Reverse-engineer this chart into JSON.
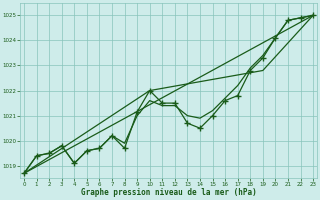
{
  "title": "Graphe pression niveau de la mer (hPa)",
  "bg_color": "#ceecea",
  "grid_color": "#88c4bc",
  "line_color": "#1a5c1a",
  "xlim": [
    -0.3,
    23.3
  ],
  "ylim": [
    1018.5,
    1025.5
  ],
  "yticks": [
    1019,
    1020,
    1021,
    1022,
    1023,
    1024,
    1025
  ],
  "xticks": [
    0,
    1,
    2,
    3,
    4,
    5,
    6,
    7,
    8,
    9,
    10,
    11,
    12,
    13,
    14,
    15,
    16,
    17,
    18,
    19,
    20,
    21,
    22,
    23
  ],
  "series_main": [
    1018.7,
    1019.4,
    1019.5,
    1019.8,
    1019.1,
    1019.6,
    1019.7,
    1020.2,
    1019.7,
    1021.15,
    1022.0,
    1021.5,
    1021.5,
    1020.7,
    1020.5,
    1021.0,
    1021.6,
    1021.8,
    1022.8,
    1023.3,
    1024.1,
    1024.8,
    1024.9,
    1025.0
  ],
  "series_smooth": [
    1018.7,
    1019.4,
    1019.5,
    1019.8,
    1019.1,
    1019.6,
    1019.7,
    1020.2,
    1019.9,
    1021.0,
    1021.6,
    1021.4,
    1021.4,
    1021.0,
    1020.9,
    1021.2,
    1021.7,
    1022.2,
    1022.9,
    1023.4,
    1024.1,
    1024.8,
    1024.9,
    1025.0
  ],
  "line3_x": [
    0,
    23
  ],
  "line3_y": [
    1018.7,
    1025.0
  ],
  "line4_x": [
    0,
    10,
    19,
    23
  ],
  "line4_y": [
    1018.7,
    1022.0,
    1022.8,
    1025.0
  ]
}
